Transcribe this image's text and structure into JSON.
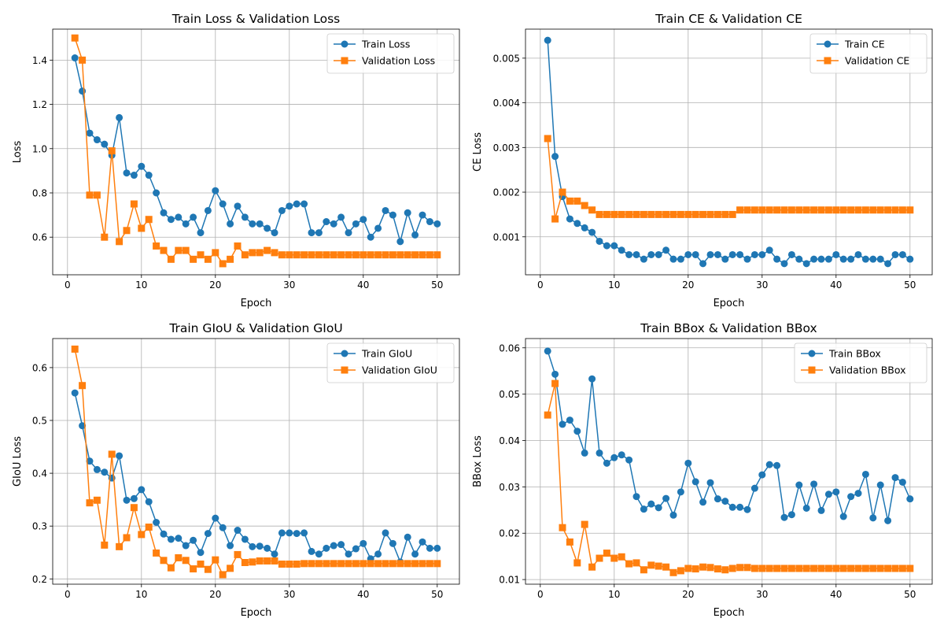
{
  "colors": {
    "train": "#1f77b4",
    "validation": "#ff7f0e",
    "grid": "#b0b0b0",
    "axis": "#000000"
  },
  "chart_data": [
    {
      "type": "line",
      "title": "Train Loss & Validation Loss",
      "xlabel": "Epoch",
      "ylabel": "Loss",
      "xlim": [
        -2,
        53
      ],
      "ylim": [
        0.43,
        1.54
      ],
      "xticks": [
        0,
        10,
        20,
        30,
        40,
        50
      ],
      "xtick_labels": [
        "0",
        "10",
        "20",
        "30",
        "40",
        "50"
      ],
      "yticks": [
        0.6,
        0.8,
        1.0,
        1.2,
        1.4
      ],
      "ytick_labels": [
        "0.6",
        "0.8",
        "1.0",
        "1.2",
        "1.4"
      ],
      "grid": true,
      "legend_position": "top-right",
      "x": [
        1,
        2,
        3,
        4,
        5,
        6,
        7,
        8,
        9,
        10,
        11,
        12,
        13,
        14,
        15,
        16,
        17,
        18,
        19,
        20,
        21,
        22,
        23,
        24,
        25,
        26,
        27,
        28,
        29,
        30,
        31,
        32,
        33,
        34,
        35,
        36,
        37,
        38,
        39,
        40,
        41,
        42,
        43,
        44,
        45,
        46,
        47,
        48,
        49,
        50
      ],
      "series": [
        {
          "name": "Train Loss",
          "color": "#1f77b4",
          "marker": "circle",
          "values": [
            1.41,
            1.26,
            1.07,
            1.04,
            1.02,
            0.97,
            1.14,
            0.89,
            0.88,
            0.92,
            0.88,
            0.8,
            0.71,
            0.68,
            0.69,
            0.66,
            0.69,
            0.62,
            0.72,
            0.81,
            0.75,
            0.66,
            0.74,
            0.69,
            0.66,
            0.66,
            0.64,
            0.62,
            0.72,
            0.74,
            0.75,
            0.75,
            0.62,
            0.62,
            0.67,
            0.66,
            0.69,
            0.62,
            0.66,
            0.68,
            0.6,
            0.64,
            0.72,
            0.7,
            0.58,
            0.71,
            0.61,
            0.7,
            0.67,
            0.66
          ]
        },
        {
          "name": "Validation Loss",
          "color": "#ff7f0e",
          "marker": "square",
          "values": [
            1.5,
            1.4,
            0.79,
            0.79,
            0.6,
            0.99,
            0.58,
            0.63,
            0.75,
            0.64,
            0.68,
            0.56,
            0.54,
            0.5,
            0.54,
            0.54,
            0.5,
            0.52,
            0.5,
            0.53,
            0.48,
            0.5,
            0.56,
            0.52,
            0.53,
            0.53,
            0.54,
            0.53,
            0.52,
            0.52,
            0.52,
            0.52,
            0.52,
            0.52,
            0.52,
            0.52,
            0.52,
            0.52,
            0.52,
            0.52,
            0.52,
            0.52,
            0.52,
            0.52,
            0.52,
            0.52,
            0.52,
            0.52,
            0.52,
            0.52
          ]
        }
      ]
    },
    {
      "type": "line",
      "title": "Train CE & Validation CE",
      "xlabel": "Epoch",
      "ylabel": "CE Loss",
      "xlim": [
        -2,
        53
      ],
      "ylim": [
        0.00015,
        0.00565
      ],
      "xticks": [
        0,
        10,
        20,
        30,
        40,
        50
      ],
      "xtick_labels": [
        "0",
        "10",
        "20",
        "30",
        "40",
        "50"
      ],
      "yticks": [
        0.001,
        0.002,
        0.003,
        0.004,
        0.005
      ],
      "ytick_labels": [
        "0.001",
        "0.002",
        "0.003",
        "0.004",
        "0.005"
      ],
      "grid": true,
      "legend_position": "top-right",
      "x": [
        1,
        2,
        3,
        4,
        5,
        6,
        7,
        8,
        9,
        10,
        11,
        12,
        13,
        14,
        15,
        16,
        17,
        18,
        19,
        20,
        21,
        22,
        23,
        24,
        25,
        26,
        27,
        28,
        29,
        30,
        31,
        32,
        33,
        34,
        35,
        36,
        37,
        38,
        39,
        40,
        41,
        42,
        43,
        44,
        45,
        46,
        47,
        48,
        49,
        50
      ],
      "series": [
        {
          "name": "Train CE",
          "color": "#1f77b4",
          "marker": "circle",
          "values": [
            0.0054,
            0.0028,
            0.0019,
            0.0014,
            0.0013,
            0.0012,
            0.0011,
            0.0009,
            0.0008,
            0.0008,
            0.0007,
            0.0006,
            0.0006,
            0.0005,
            0.0006,
            0.0006,
            0.0007,
            0.0005,
            0.0005,
            0.0006,
            0.0006,
            0.0004,
            0.0006,
            0.0006,
            0.0005,
            0.0006,
            0.0006,
            0.0005,
            0.0006,
            0.0006,
            0.0007,
            0.0005,
            0.0004,
            0.0006,
            0.0005,
            0.0004,
            0.0005,
            0.0005,
            0.0005,
            0.0006,
            0.0005,
            0.0005,
            0.0006,
            0.0005,
            0.0005,
            0.0005,
            0.0004,
            0.0006,
            0.0006,
            0.0005
          ]
        },
        {
          "name": "Validation CE",
          "color": "#ff7f0e",
          "marker": "square",
          "values": [
            0.0032,
            0.0014,
            0.002,
            0.0018,
            0.0018,
            0.0017,
            0.0016,
            0.0015,
            0.0015,
            0.0015,
            0.0015,
            0.0015,
            0.0015,
            0.0015,
            0.0015,
            0.0015,
            0.0015,
            0.0015,
            0.0015,
            0.0015,
            0.0015,
            0.0015,
            0.0015,
            0.0015,
            0.0015,
            0.0015,
            0.0016,
            0.0016,
            0.0016,
            0.0016,
            0.0016,
            0.0016,
            0.0016,
            0.0016,
            0.0016,
            0.0016,
            0.0016,
            0.0016,
            0.0016,
            0.0016,
            0.0016,
            0.0016,
            0.0016,
            0.0016,
            0.0016,
            0.0016,
            0.0016,
            0.0016,
            0.0016,
            0.0016
          ]
        }
      ]
    },
    {
      "type": "line",
      "title": "Train GIoU & Validation GIoU",
      "xlabel": "Epoch",
      "ylabel": "GIoU Loss",
      "xlim": [
        -2,
        53
      ],
      "ylim": [
        0.19,
        0.655
      ],
      "xticks": [
        0,
        10,
        20,
        30,
        40,
        50
      ],
      "xtick_labels": [
        "0",
        "10",
        "20",
        "30",
        "40",
        "50"
      ],
      "yticks": [
        0.2,
        0.3,
        0.4,
        0.5,
        0.6
      ],
      "ytick_labels": [
        "0.2",
        "0.3",
        "0.4",
        "0.5",
        "0.6"
      ],
      "grid": true,
      "legend_position": "top-right",
      "x": [
        1,
        2,
        3,
        4,
        5,
        6,
        7,
        8,
        9,
        10,
        11,
        12,
        13,
        14,
        15,
        16,
        17,
        18,
        19,
        20,
        21,
        22,
        23,
        24,
        25,
        26,
        27,
        28,
        29,
        30,
        31,
        32,
        33,
        34,
        35,
        36,
        37,
        38,
        39,
        40,
        41,
        42,
        43,
        44,
        45,
        46,
        47,
        48,
        49,
        50
      ],
      "series": [
        {
          "name": "Train GIoU",
          "color": "#1f77b4",
          "marker": "circle",
          "values": [
            0.552,
            0.49,
            0.423,
            0.407,
            0.402,
            0.391,
            0.433,
            0.349,
            0.352,
            0.369,
            0.346,
            0.307,
            0.285,
            0.275,
            0.277,
            0.263,
            0.273,
            0.25,
            0.286,
            0.315,
            0.297,
            0.263,
            0.292,
            0.275,
            0.261,
            0.262,
            0.258,
            0.247,
            0.287,
            0.287,
            0.286,
            0.287,
            0.252,
            0.247,
            0.258,
            0.263,
            0.265,
            0.247,
            0.257,
            0.267,
            0.238,
            0.247,
            0.287,
            0.267,
            0.232,
            0.279,
            0.247,
            0.27,
            0.258,
            0.258
          ]
        },
        {
          "name": "Validation GIoU",
          "color": "#ff7f0e",
          "marker": "square",
          "values": [
            0.635,
            0.566,
            0.344,
            0.349,
            0.264,
            0.436,
            0.261,
            0.278,
            0.335,
            0.284,
            0.298,
            0.249,
            0.235,
            0.221,
            0.24,
            0.235,
            0.219,
            0.228,
            0.218,
            0.236,
            0.208,
            0.22,
            0.246,
            0.231,
            0.232,
            0.234,
            0.234,
            0.234,
            0.228,
            0.228,
            0.228,
            0.229,
            0.229,
            0.229,
            0.229,
            0.229,
            0.229,
            0.229,
            0.229,
            0.229,
            0.229,
            0.229,
            0.229,
            0.229,
            0.229,
            0.229,
            0.229,
            0.229,
            0.229,
            0.229
          ]
        }
      ]
    },
    {
      "type": "line",
      "title": "Train BBox & Validation BBox",
      "xlabel": "Epoch",
      "ylabel": "BBox Loss",
      "xlim": [
        -2,
        53
      ],
      "ylim": [
        0.009,
        0.062
      ],
      "xticks": [
        0,
        10,
        20,
        30,
        40,
        50
      ],
      "xtick_labels": [
        "0",
        "10",
        "20",
        "30",
        "40",
        "50"
      ],
      "yticks": [
        0.01,
        0.02,
        0.03,
        0.04,
        0.05,
        0.06
      ],
      "ytick_labels": [
        "0.01",
        "0.02",
        "0.03",
        "0.04",
        "0.05",
        "0.06"
      ],
      "grid": true,
      "legend_position": "top-right",
      "x": [
        1,
        2,
        3,
        4,
        5,
        6,
        7,
        8,
        9,
        10,
        11,
        12,
        13,
        14,
        15,
        16,
        17,
        18,
        19,
        20,
        21,
        22,
        23,
        24,
        25,
        26,
        27,
        28,
        29,
        30,
        31,
        32,
        33,
        34,
        35,
        36,
        37,
        38,
        39,
        40,
        41,
        42,
        43,
        44,
        45,
        46,
        47,
        48,
        49,
        50
      ],
      "series": [
        {
          "name": "Train BBox",
          "color": "#1f77b4",
          "marker": "circle",
          "values": [
            0.0593,
            0.0543,
            0.0435,
            0.0444,
            0.042,
            0.0373,
            0.0533,
            0.0373,
            0.0351,
            0.0363,
            0.0369,
            0.0358,
            0.0279,
            0.0252,
            0.0263,
            0.0255,
            0.0275,
            0.0239,
            0.0289,
            0.0351,
            0.0311,
            0.0267,
            0.0309,
            0.0274,
            0.0269,
            0.0256,
            0.0256,
            0.0251,
            0.0297,
            0.0326,
            0.0348,
            0.0346,
            0.0234,
            0.024,
            0.0304,
            0.0254,
            0.0306,
            0.0249,
            0.0284,
            0.0289,
            0.0236,
            0.0279,
            0.0286,
            0.0327,
            0.0233,
            0.0304,
            0.0227,
            0.032,
            0.031,
            0.0274
          ]
        },
        {
          "name": "Validation BBox",
          "color": "#ff7f0e",
          "marker": "square",
          "values": [
            0.0455,
            0.0523,
            0.0212,
            0.0181,
            0.0136,
            0.0219,
            0.0127,
            0.0146,
            0.0157,
            0.0146,
            0.0149,
            0.0134,
            0.0136,
            0.0121,
            0.0131,
            0.0129,
            0.0127,
            0.0115,
            0.0119,
            0.0124,
            0.0123,
            0.0127,
            0.0126,
            0.0123,
            0.0121,
            0.0124,
            0.0126,
            0.0126,
            0.0124,
            0.0124,
            0.0124,
            0.0124,
            0.0124,
            0.0124,
            0.0124,
            0.0124,
            0.0124,
            0.0124,
            0.0124,
            0.0124,
            0.0124,
            0.0124,
            0.0124,
            0.0124,
            0.0124,
            0.0124,
            0.0124,
            0.0124,
            0.0124,
            0.0124
          ]
        }
      ]
    }
  ]
}
